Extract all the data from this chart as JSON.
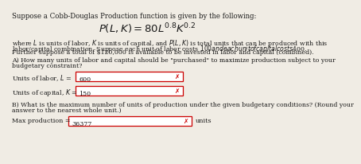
{
  "title_line": "Suppose a Cobb-Douglas Production function is given by the following:",
  "formula": "$P(L, K) = 80L^{0.8}K^{0.2}$",
  "desc1": "where $L$ is units of labor, $K$ is units of capital, and $P(L, K)$ is total units that can be produced with this",
  "desc2": "labor/capital combination. Suppose each unit of labor costs $100 and each unit of capital costs $400.",
  "desc3": "Further suppose a total of $120,000 is available to be invested in labor and capital (combined).",
  "question_a1": "A) How many units of labor and capital should be \"purchased\" to maximize production subject to your",
  "question_a2": "budgetary constraint?",
  "label_L": "Units of labor, $L$ =",
  "value_L": "600",
  "label_K": "Units of capital, $K$ =",
  "value_K": "150",
  "question_b1": "B) What is the maximum number of units of production under the given budgetary conditions? (Round your",
  "question_b2": "answer to the nearest whole unit.)",
  "label_max": "Max production =",
  "value_max": "36377",
  "units_label": "units",
  "box_border_color": "#cc0000",
  "x_color": "#cc0000",
  "text_color": "#1a1a1a",
  "bg_color": "#f0ece4",
  "font_size_title": 6.2,
  "font_size_formula": 9.5,
  "font_size_body": 5.6,
  "font_size_label": 5.8,
  "font_size_value": 5.8,
  "font_size_x": 5.5
}
